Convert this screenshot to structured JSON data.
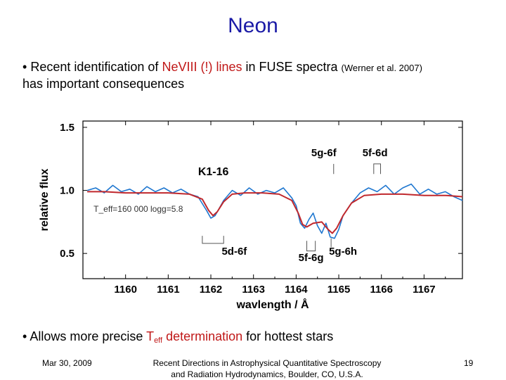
{
  "slide": {
    "title": "Neon",
    "bullet1": {
      "marker": "•",
      "part1": "Recent identification of ",
      "highlight": "Ne",
      "highlight_roman": "VIII",
      "highlight2": " (!) lines",
      "part2": " in FUSE spectra ",
      "citation": "(Werner et al. 2007)",
      "part3": "has important consequences"
    },
    "bullet2": {
      "marker": "•",
      "part1": "Allows more precise ",
      "teff_T": "T",
      "teff_sub": "eff",
      "highlight": " determination",
      "part2": " for hottest stars"
    },
    "footer": {
      "date": "Mar 30, 2009",
      "conference_line1": "Recent Directions in Astrophysical Quantitative Spectroscopy",
      "conference_line2": "and Radiation Hydrodynamics, Boulder, CO, U.S.A.",
      "page": "19"
    }
  },
  "chart_data": {
    "type": "line",
    "title": "",
    "xlabel": "wavlength / Å",
    "ylabel": "relative flux",
    "xlim": [
      1159.0,
      1167.9
    ],
    "ylim": [
      0.3,
      1.55
    ],
    "x_ticks": [
      "1160",
      "1161",
      "1162",
      "1163",
      "1164",
      "1165",
      "1166",
      "1167"
    ],
    "y_ticks": [
      "0.5",
      "1.0",
      "1.5"
    ],
    "annotations": {
      "star": "K1-16",
      "params": "T_eff=160 000   logg=5.8",
      "line_labels": [
        "5g-6f",
        "5f-6d",
        "5d-6f",
        "5f-6g",
        "5g-6h"
      ]
    },
    "colors": {
      "observed": "#1f77d0",
      "model": "#c0282d"
    },
    "series": [
      {
        "name": "observed",
        "x": [
          1159.1,
          1159.3,
          1159.5,
          1159.7,
          1159.9,
          1160.1,
          1160.3,
          1160.5,
          1160.7,
          1160.9,
          1161.1,
          1161.3,
          1161.5,
          1161.7,
          1161.9,
          1162.0,
          1162.1,
          1162.2,
          1162.3,
          1162.5,
          1162.7,
          1162.9,
          1163.1,
          1163.3,
          1163.5,
          1163.7,
          1163.9,
          1164.0,
          1164.1,
          1164.2,
          1164.3,
          1164.4,
          1164.5,
          1164.6,
          1164.7,
          1164.8,
          1164.9,
          1165.0,
          1165.1,
          1165.3,
          1165.5,
          1165.7,
          1165.9,
          1166.1,
          1166.3,
          1166.5,
          1166.7,
          1166.9,
          1167.1,
          1167.3,
          1167.5,
          1167.7,
          1167.9
        ],
        "y": [
          1.0,
          1.02,
          0.98,
          1.04,
          0.99,
          1.01,
          0.97,
          1.03,
          0.99,
          1.02,
          0.98,
          1.01,
          0.97,
          0.95,
          0.84,
          0.78,
          0.8,
          0.86,
          0.92,
          1.0,
          0.96,
          1.02,
          0.97,
          1.0,
          0.98,
          1.02,
          0.94,
          0.88,
          0.74,
          0.7,
          0.77,
          0.82,
          0.72,
          0.66,
          0.74,
          0.63,
          0.62,
          0.69,
          0.8,
          0.9,
          0.98,
          1.02,
          0.99,
          1.04,
          0.97,
          1.02,
          1.05,
          0.97,
          1.01,
          0.97,
          0.99,
          0.95,
          0.92
        ]
      },
      {
        "name": "model",
        "x": [
          1159.1,
          1159.5,
          1160.0,
          1160.5,
          1161.0,
          1161.5,
          1161.8,
          1161.95,
          1162.05,
          1162.15,
          1162.3,
          1162.5,
          1162.8,
          1163.2,
          1163.6,
          1163.9,
          1164.05,
          1164.15,
          1164.25,
          1164.4,
          1164.6,
          1164.75,
          1164.85,
          1164.95,
          1165.1,
          1165.3,
          1165.6,
          1166.0,
          1166.5,
          1167.0,
          1167.5,
          1167.9
        ],
        "y": [
          0.99,
          0.99,
          0.98,
          0.98,
          0.98,
          0.97,
          0.93,
          0.84,
          0.8,
          0.83,
          0.91,
          0.97,
          0.98,
          0.98,
          0.97,
          0.92,
          0.82,
          0.73,
          0.71,
          0.74,
          0.75,
          0.69,
          0.66,
          0.7,
          0.8,
          0.9,
          0.96,
          0.97,
          0.97,
          0.96,
          0.96,
          0.95
        ]
      }
    ]
  }
}
